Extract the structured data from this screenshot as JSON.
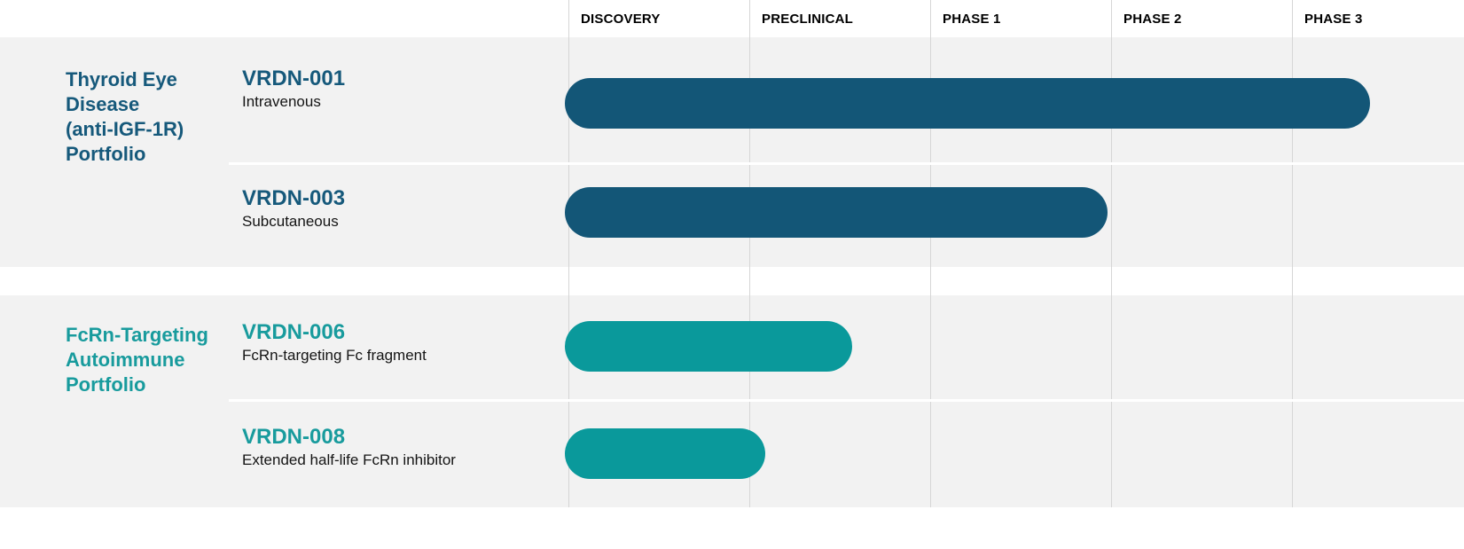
{
  "chart_data": {
    "type": "bar",
    "variant": "pipeline-gantt",
    "orientation": "horizontal",
    "columns": [
      "DISCOVERY",
      "PRECLINICAL",
      "PHASE 1",
      "PHASE 2",
      "PHASE 3"
    ],
    "axis_note": "bar start/end measured in phase-column units from the start of DISCOVERY (0 = Discovery line, 5 = end of Phase 3)",
    "grid": "vertical lines at each phase boundary",
    "groups": [
      {
        "name": "Thyroid Eye Disease (anti-IGF-1R) Portfolio",
        "name_lines": [
          "Thyroid Eye",
          "Disease",
          "(anti-IGF-1R)",
          "Portfolio"
        ],
        "bar_color": "#135677",
        "text_color": "#16597B",
        "programs": [
          {
            "id": "VRDN-001",
            "description": "Intravenous",
            "start": 0,
            "end": 4.43,
            "phase_reached": "Phase 3"
          },
          {
            "id": "VRDN-003",
            "description": "Subcutaneous",
            "start": 0,
            "end": 2.98,
            "phase_reached": "Phase 1 complete"
          }
        ]
      },
      {
        "name": "FcRn-Targeting Autoimmune Portfolio",
        "name_lines": [
          "FcRn-Targeting",
          "Autoimmune",
          "Portfolio"
        ],
        "bar_color": "#0A999B",
        "text_color": "#189B9D",
        "programs": [
          {
            "id": "VRDN-006",
            "description": "FcRn-targeting Fc fragment",
            "start": 0,
            "end": 1.57,
            "phase_reached": "Preclinical"
          },
          {
            "id": "VRDN-008",
            "description": "Extended half-life FcRn inhibitor",
            "start": 0,
            "end": 1.09,
            "phase_reached": "Preclinical"
          }
        ]
      }
    ],
    "colors": {
      "band_background": "#f2f2f2",
      "gridline": "#d6d6d6",
      "header_text": "#000000",
      "description_text": "#141414",
      "page_background": "#ffffff"
    }
  }
}
